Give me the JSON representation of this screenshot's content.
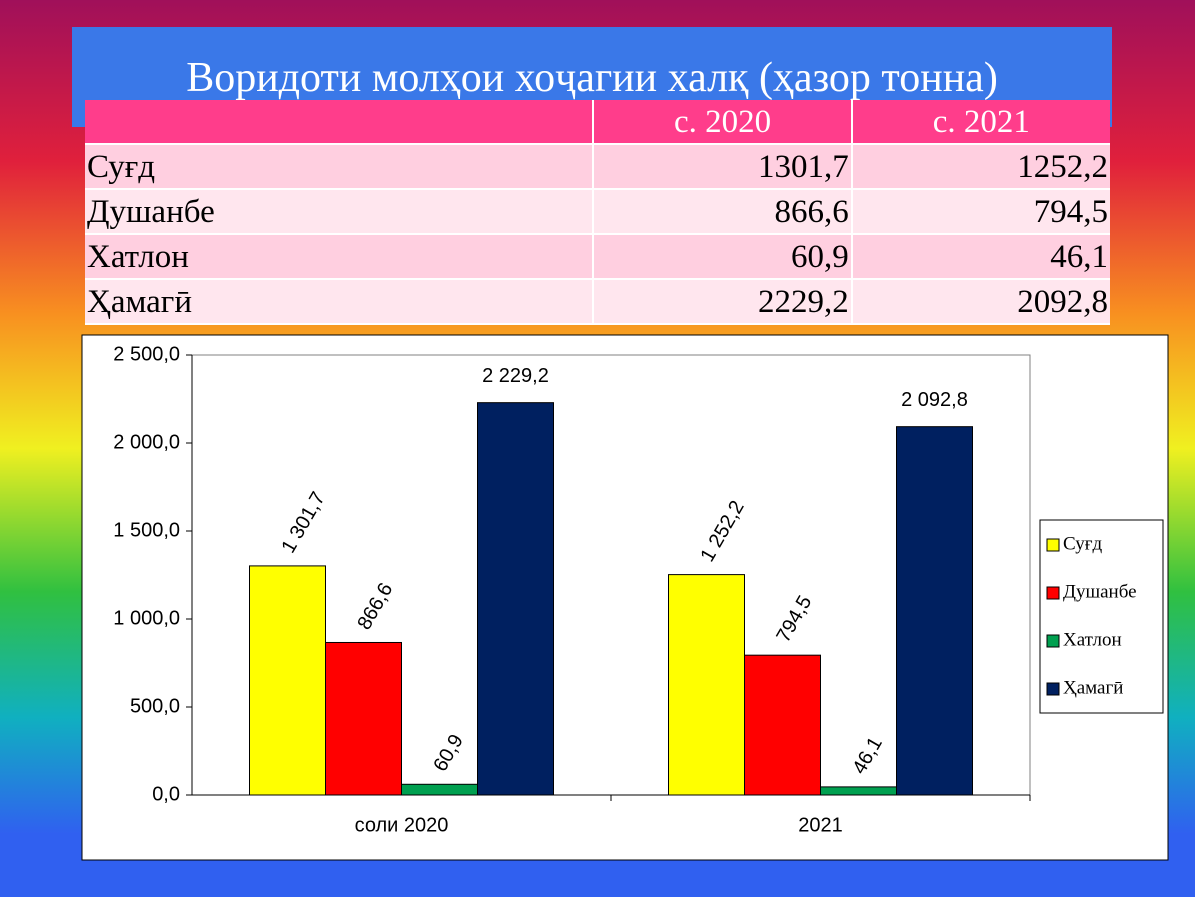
{
  "title": "Воридоти молҳои хоҷагии халқ (ҳазор тонна)",
  "table": {
    "header": [
      "",
      "с. 2020",
      "с. 2021"
    ],
    "rows": [
      [
        "Суғд",
        "1301,7",
        "1252,2"
      ],
      [
        "Душанбе",
        "866,6",
        "794,5"
      ],
      [
        "Хатлон",
        "60,9",
        "46,1"
      ],
      [
        "Ҳамагӣ",
        "2229,2",
        "2092,8"
      ]
    ]
  },
  "chart_data": {
    "type": "bar",
    "categories": [
      "соли 2020",
      "2021"
    ],
    "series": [
      {
        "name": "Суғд",
        "color": "#ffff00",
        "values": [
          1301.7,
          1252.2
        ],
        "value_labels": [
          "1 301,7",
          "1 252,2"
        ]
      },
      {
        "name": "Душанбе",
        "color": "#ff0000",
        "values": [
          866.6,
          794.5
        ],
        "value_labels": [
          "866,6",
          "794,5"
        ]
      },
      {
        "name": "Хатлон",
        "color": "#00a050",
        "values": [
          60.9,
          46.1
        ],
        "value_labels": [
          "60,9",
          "46,1"
        ]
      },
      {
        "name": "Ҳамагӣ",
        "color": "#002060",
        "values": [
          2229.2,
          2092.8
        ],
        "value_labels": [
          "2 229,2",
          "2 092,8"
        ]
      }
    ],
    "ylim": [
      0,
      2500
    ],
    "yticks": [
      {
        "value": 0,
        "label": "0,0"
      },
      {
        "value": 500,
        "label": "500,0"
      },
      {
        "value": 1000,
        "label": "1 000,0"
      },
      {
        "value": 1500,
        "label": "1 500,0"
      },
      {
        "value": 2000,
        "label": "2 000,0"
      },
      {
        "value": 2500,
        "label": "2 500,0"
      }
    ],
    "legend": "right"
  }
}
